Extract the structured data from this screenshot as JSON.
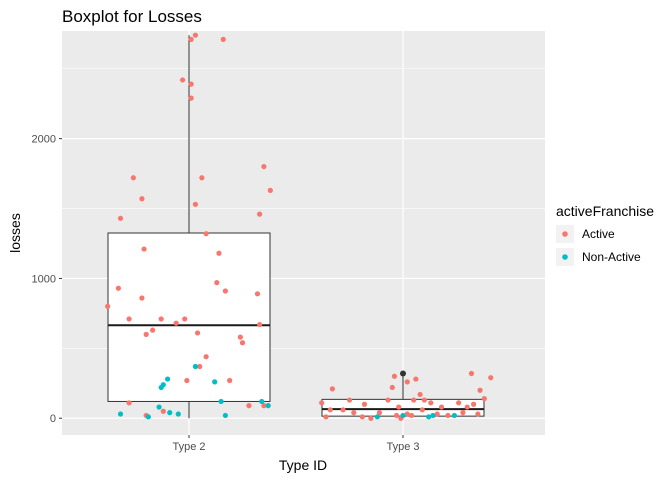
{
  "chart_data": {
    "type": "boxplot",
    "title": "Boxplot for Losses",
    "xlabel": "Type ID",
    "ylabel": "losses",
    "categories": [
      "Type 2",
      "Type 3"
    ],
    "ylim": [
      -120,
      2770
    ],
    "yticks": [
      0,
      1000,
      2000
    ],
    "grid": true,
    "boxes": [
      {
        "category": "Type 2",
        "min": 0,
        "q1": 120,
        "median": 665,
        "q3": 1325,
        "max": 2740,
        "outliers": []
      },
      {
        "category": "Type 3",
        "min": 0,
        "q1": 15,
        "median": 65,
        "q3": 135,
        "max": 300,
        "outliers": [
          320
        ]
      }
    ],
    "legend": {
      "title": "activeFranchise",
      "position": "right",
      "entries": [
        {
          "label": "Active",
          "color": "#f8766d"
        },
        {
          "label": "Non-Active",
          "color": "#00bfc4"
        }
      ]
    },
    "points": [
      {
        "category": "Type 2",
        "offset": -0.38,
        "y": 800,
        "group": "Active"
      },
      {
        "category": "Type 2",
        "offset": -0.32,
        "y": 1430,
        "group": "Active"
      },
      {
        "category": "Type 2",
        "offset": -0.33,
        "y": 930,
        "group": "Active"
      },
      {
        "category": "Type 2",
        "offset": -0.26,
        "y": 1720,
        "group": "Active"
      },
      {
        "category": "Type 2",
        "offset": -0.22,
        "y": 1570,
        "group": "Active"
      },
      {
        "category": "Type 2",
        "offset": -0.21,
        "y": 1210,
        "group": "Active"
      },
      {
        "category": "Type 2",
        "offset": -0.22,
        "y": 860,
        "group": "Active"
      },
      {
        "category": "Type 2",
        "offset": -0.28,
        "y": 710,
        "group": "Active"
      },
      {
        "category": "Type 2",
        "offset": -0.2,
        "y": 600,
        "group": "Active"
      },
      {
        "category": "Type 2",
        "offset": -0.17,
        "y": 630,
        "group": "Active"
      },
      {
        "category": "Type 2",
        "offset": -0.13,
        "y": 710,
        "group": "Active"
      },
      {
        "category": "Type 2",
        "offset": -0.28,
        "y": 110,
        "group": "Active"
      },
      {
        "category": "Type 2",
        "offset": -0.2,
        "y": 20,
        "group": "Active"
      },
      {
        "category": "Type 2",
        "offset": -0.12,
        "y": 50,
        "group": "Active"
      },
      {
        "category": "Type 2",
        "offset": -0.02,
        "y": 710,
        "group": "Active"
      },
      {
        "category": "Type 2",
        "offset": -0.06,
        "y": 680,
        "group": "Active"
      },
      {
        "category": "Type 2",
        "offset": -0.03,
        "y": 2420,
        "group": "Active"
      },
      {
        "category": "Type 2",
        "offset": 0.01,
        "y": 2710,
        "group": "Active"
      },
      {
        "category": "Type 2",
        "offset": 0.03,
        "y": 2740,
        "group": "Active"
      },
      {
        "category": "Type 2",
        "offset": 0.01,
        "y": 2390,
        "group": "Active"
      },
      {
        "category": "Type 2",
        "offset": 0.01,
        "y": 2290,
        "group": "Active"
      },
      {
        "category": "Type 2",
        "offset": 0.06,
        "y": 1720,
        "group": "Active"
      },
      {
        "category": "Type 2",
        "offset": 0.03,
        "y": 1530,
        "group": "Active"
      },
      {
        "category": "Type 2",
        "offset": 0.08,
        "y": 1320,
        "group": "Active"
      },
      {
        "category": "Type 2",
        "offset": 0.04,
        "y": 610,
        "group": "Active"
      },
      {
        "category": "Type 2",
        "offset": 0.05,
        "y": 370,
        "group": "Active"
      },
      {
        "category": "Type 2",
        "offset": 0.08,
        "y": 440,
        "group": "Active"
      },
      {
        "category": "Type 2",
        "offset": -0.01,
        "y": 270,
        "group": "Active"
      },
      {
        "category": "Type 2",
        "offset": 0.16,
        "y": 2710,
        "group": "Active"
      },
      {
        "category": "Type 2",
        "offset": 0.14,
        "y": 1180,
        "group": "Active"
      },
      {
        "category": "Type 2",
        "offset": 0.13,
        "y": 970,
        "group": "Active"
      },
      {
        "category": "Type 2",
        "offset": 0.17,
        "y": 910,
        "group": "Active"
      },
      {
        "category": "Type 2",
        "offset": 0.24,
        "y": 580,
        "group": "Active"
      },
      {
        "category": "Type 2",
        "offset": 0.25,
        "y": 540,
        "group": "Active"
      },
      {
        "category": "Type 2",
        "offset": 0.19,
        "y": 270,
        "group": "Active"
      },
      {
        "category": "Type 2",
        "offset": 0.33,
        "y": 1460,
        "group": "Active"
      },
      {
        "category": "Type 2",
        "offset": 0.35,
        "y": 1800,
        "group": "Active"
      },
      {
        "category": "Type 2",
        "offset": 0.38,
        "y": 1630,
        "group": "Active"
      },
      {
        "category": "Type 2",
        "offset": 0.32,
        "y": 890,
        "group": "Active"
      },
      {
        "category": "Type 2",
        "offset": 0.33,
        "y": 670,
        "group": "Active"
      },
      {
        "category": "Type 2",
        "offset": 0.35,
        "y": 90,
        "group": "Active"
      },
      {
        "category": "Type 2",
        "offset": 0.28,
        "y": 90,
        "group": "Active"
      },
      {
        "category": "Type 2",
        "offset": -0.32,
        "y": 30,
        "group": "Non-Active"
      },
      {
        "category": "Type 2",
        "offset": -0.19,
        "y": 10,
        "group": "Non-Active"
      },
      {
        "category": "Type 2",
        "offset": -0.14,
        "y": 80,
        "group": "Non-Active"
      },
      {
        "category": "Type 2",
        "offset": -0.13,
        "y": 220,
        "group": "Non-Active"
      },
      {
        "category": "Type 2",
        "offset": -0.12,
        "y": 240,
        "group": "Non-Active"
      },
      {
        "category": "Type 2",
        "offset": -0.1,
        "y": 280,
        "group": "Non-Active"
      },
      {
        "category": "Type 2",
        "offset": -0.09,
        "y": 40,
        "group": "Non-Active"
      },
      {
        "category": "Type 2",
        "offset": -0.05,
        "y": 30,
        "group": "Non-Active"
      },
      {
        "category": "Type 2",
        "offset": 0.03,
        "y": 370,
        "group": "Non-Active"
      },
      {
        "category": "Type 2",
        "offset": 0.12,
        "y": 260,
        "group": "Non-Active"
      },
      {
        "category": "Type 2",
        "offset": 0.15,
        "y": 120,
        "group": "Non-Active"
      },
      {
        "category": "Type 2",
        "offset": 0.17,
        "y": 20,
        "group": "Non-Active"
      },
      {
        "category": "Type 2",
        "offset": 0.34,
        "y": 120,
        "group": "Non-Active"
      },
      {
        "category": "Type 2",
        "offset": 0.37,
        "y": 90,
        "group": "Non-Active"
      },
      {
        "category": "Type 3",
        "offset": -0.38,
        "y": 110,
        "group": "Active"
      },
      {
        "category": "Type 3",
        "offset": -0.36,
        "y": 10,
        "group": "Active"
      },
      {
        "category": "Type 3",
        "offset": -0.34,
        "y": 60,
        "group": "Active"
      },
      {
        "category": "Type 3",
        "offset": -0.33,
        "y": 210,
        "group": "Active"
      },
      {
        "category": "Type 3",
        "offset": -0.28,
        "y": 60,
        "group": "Active"
      },
      {
        "category": "Type 3",
        "offset": -0.25,
        "y": 130,
        "group": "Active"
      },
      {
        "category": "Type 3",
        "offset": -0.23,
        "y": 40,
        "group": "Active"
      },
      {
        "category": "Type 3",
        "offset": -0.18,
        "y": 100,
        "group": "Active"
      },
      {
        "category": "Type 3",
        "offset": -0.11,
        "y": 40,
        "group": "Active"
      },
      {
        "category": "Type 3",
        "offset": -0.07,
        "y": 130,
        "group": "Active"
      },
      {
        "category": "Type 3",
        "offset": -0.05,
        "y": 220,
        "group": "Active"
      },
      {
        "category": "Type 3",
        "offset": -0.03,
        "y": 20,
        "group": "Active"
      },
      {
        "category": "Type 3",
        "offset": -0.01,
        "y": 0,
        "group": "Active"
      },
      {
        "category": "Type 3",
        "offset": 0.02,
        "y": 30,
        "group": "Active"
      },
      {
        "category": "Type 3",
        "offset": 0.04,
        "y": 20,
        "group": "Active"
      },
      {
        "category": "Type 3",
        "offset": -0.02,
        "y": 80,
        "group": "Active"
      },
      {
        "category": "Type 3",
        "offset": 0.05,
        "y": 130,
        "group": "Active"
      },
      {
        "category": "Type 3",
        "offset": 0.06,
        "y": 280,
        "group": "Active"
      },
      {
        "category": "Type 3",
        "offset": -0.04,
        "y": 300,
        "group": "Active"
      },
      {
        "category": "Type 3",
        "offset": 0.02,
        "y": 260,
        "group": "Active"
      },
      {
        "category": "Type 3",
        "offset": 0.08,
        "y": 170,
        "group": "Active"
      },
      {
        "category": "Type 3",
        "offset": 0.09,
        "y": 60,
        "group": "Active"
      },
      {
        "category": "Type 3",
        "offset": 0.1,
        "y": 130,
        "group": "Active"
      },
      {
        "category": "Type 3",
        "offset": 0.13,
        "y": 110,
        "group": "Active"
      },
      {
        "category": "Type 3",
        "offset": 0.16,
        "y": 30,
        "group": "Active"
      },
      {
        "category": "Type 3",
        "offset": 0.18,
        "y": 80,
        "group": "Active"
      },
      {
        "category": "Type 3",
        "offset": 0.21,
        "y": 20,
        "group": "Active"
      },
      {
        "category": "Type 3",
        "offset": 0.26,
        "y": 110,
        "group": "Active"
      },
      {
        "category": "Type 3",
        "offset": 0.28,
        "y": 40,
        "group": "Active"
      },
      {
        "category": "Type 3",
        "offset": 0.3,
        "y": 80,
        "group": "Active"
      },
      {
        "category": "Type 3",
        "offset": 0.32,
        "y": 320,
        "group": "Active"
      },
      {
        "category": "Type 3",
        "offset": 0.33,
        "y": 100,
        "group": "Active"
      },
      {
        "category": "Type 3",
        "offset": 0.35,
        "y": 30,
        "group": "Active"
      },
      {
        "category": "Type 3",
        "offset": 0.36,
        "y": 200,
        "group": "Active"
      },
      {
        "category": "Type 3",
        "offset": 0.38,
        "y": 140,
        "group": "Active"
      },
      {
        "category": "Type 3",
        "offset": 0.41,
        "y": 290,
        "group": "Active"
      },
      {
        "category": "Type 3",
        "offset": -0.19,
        "y": 10,
        "group": "Active"
      },
      {
        "category": "Type 3",
        "offset": -0.15,
        "y": 0,
        "group": "Active"
      },
      {
        "category": "Type 3",
        "offset": -0.12,
        "y": 10,
        "group": "Non-Active"
      },
      {
        "category": "Type 3",
        "offset": 0.0,
        "y": 20,
        "group": "Non-Active"
      },
      {
        "category": "Type 3",
        "offset": 0.12,
        "y": 10,
        "group": "Non-Active"
      },
      {
        "category": "Type 3",
        "offset": 0.14,
        "y": 20,
        "group": "Non-Active"
      },
      {
        "category": "Type 3",
        "offset": 0.24,
        "y": 20,
        "group": "Non-Active"
      }
    ]
  }
}
